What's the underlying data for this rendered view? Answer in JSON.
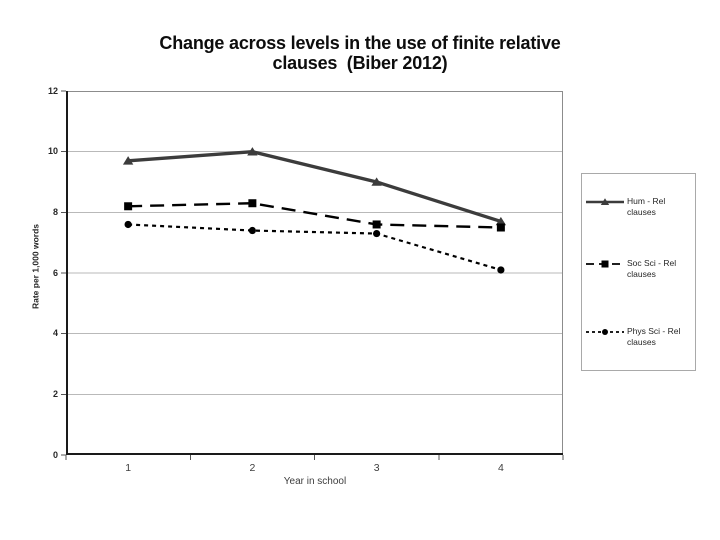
{
  "title": {
    "line1": "Change across levels in the use of finite relative",
    "line2": "clauses  (Biber 2012)"
  },
  "chart_data": {
    "type": "line",
    "title": "Change across levels in the use of finite relative clauses (Biber 2012)",
    "categories": [
      "1",
      "2",
      "3",
      "4"
    ],
    "xlabel": "Year in school",
    "ylabel": "Rate per 1,000 words",
    "ylim": [
      0,
      12
    ],
    "yticks": [
      0,
      2,
      4,
      6,
      8,
      10,
      12
    ],
    "grid": true,
    "legend_position": "right",
    "grid_color": "#b9b9b9",
    "frame_color": "#8c8c8c",
    "axis_color": "#1a1a1a",
    "series": [
      {
        "name": "Hum - Rel clauses",
        "legend_lines": [
          "Hum - Rel clauses"
        ],
        "values": [
          9.7,
          10.0,
          9.0,
          7.7
        ],
        "marker": "triangle",
        "line_style": "solid",
        "color": "#3c3c3c"
      },
      {
        "name": "Soc Sci - Rel clauses",
        "legend_lines": [
          "Soc Sci - Rel",
          "clauses"
        ],
        "values": [
          8.2,
          8.3,
          7.6,
          7.5
        ],
        "marker": "square",
        "line_style": "long-dash",
        "color": "#000000"
      },
      {
        "name": "Phys Sci - Rel clauses",
        "legend_lines": [
          "Phys Sci - Rel",
          "clauses"
        ],
        "values": [
          7.6,
          7.4,
          7.3,
          6.1
        ],
        "marker": "circle",
        "line_style": "short-dash",
        "color": "#000000"
      }
    ]
  }
}
